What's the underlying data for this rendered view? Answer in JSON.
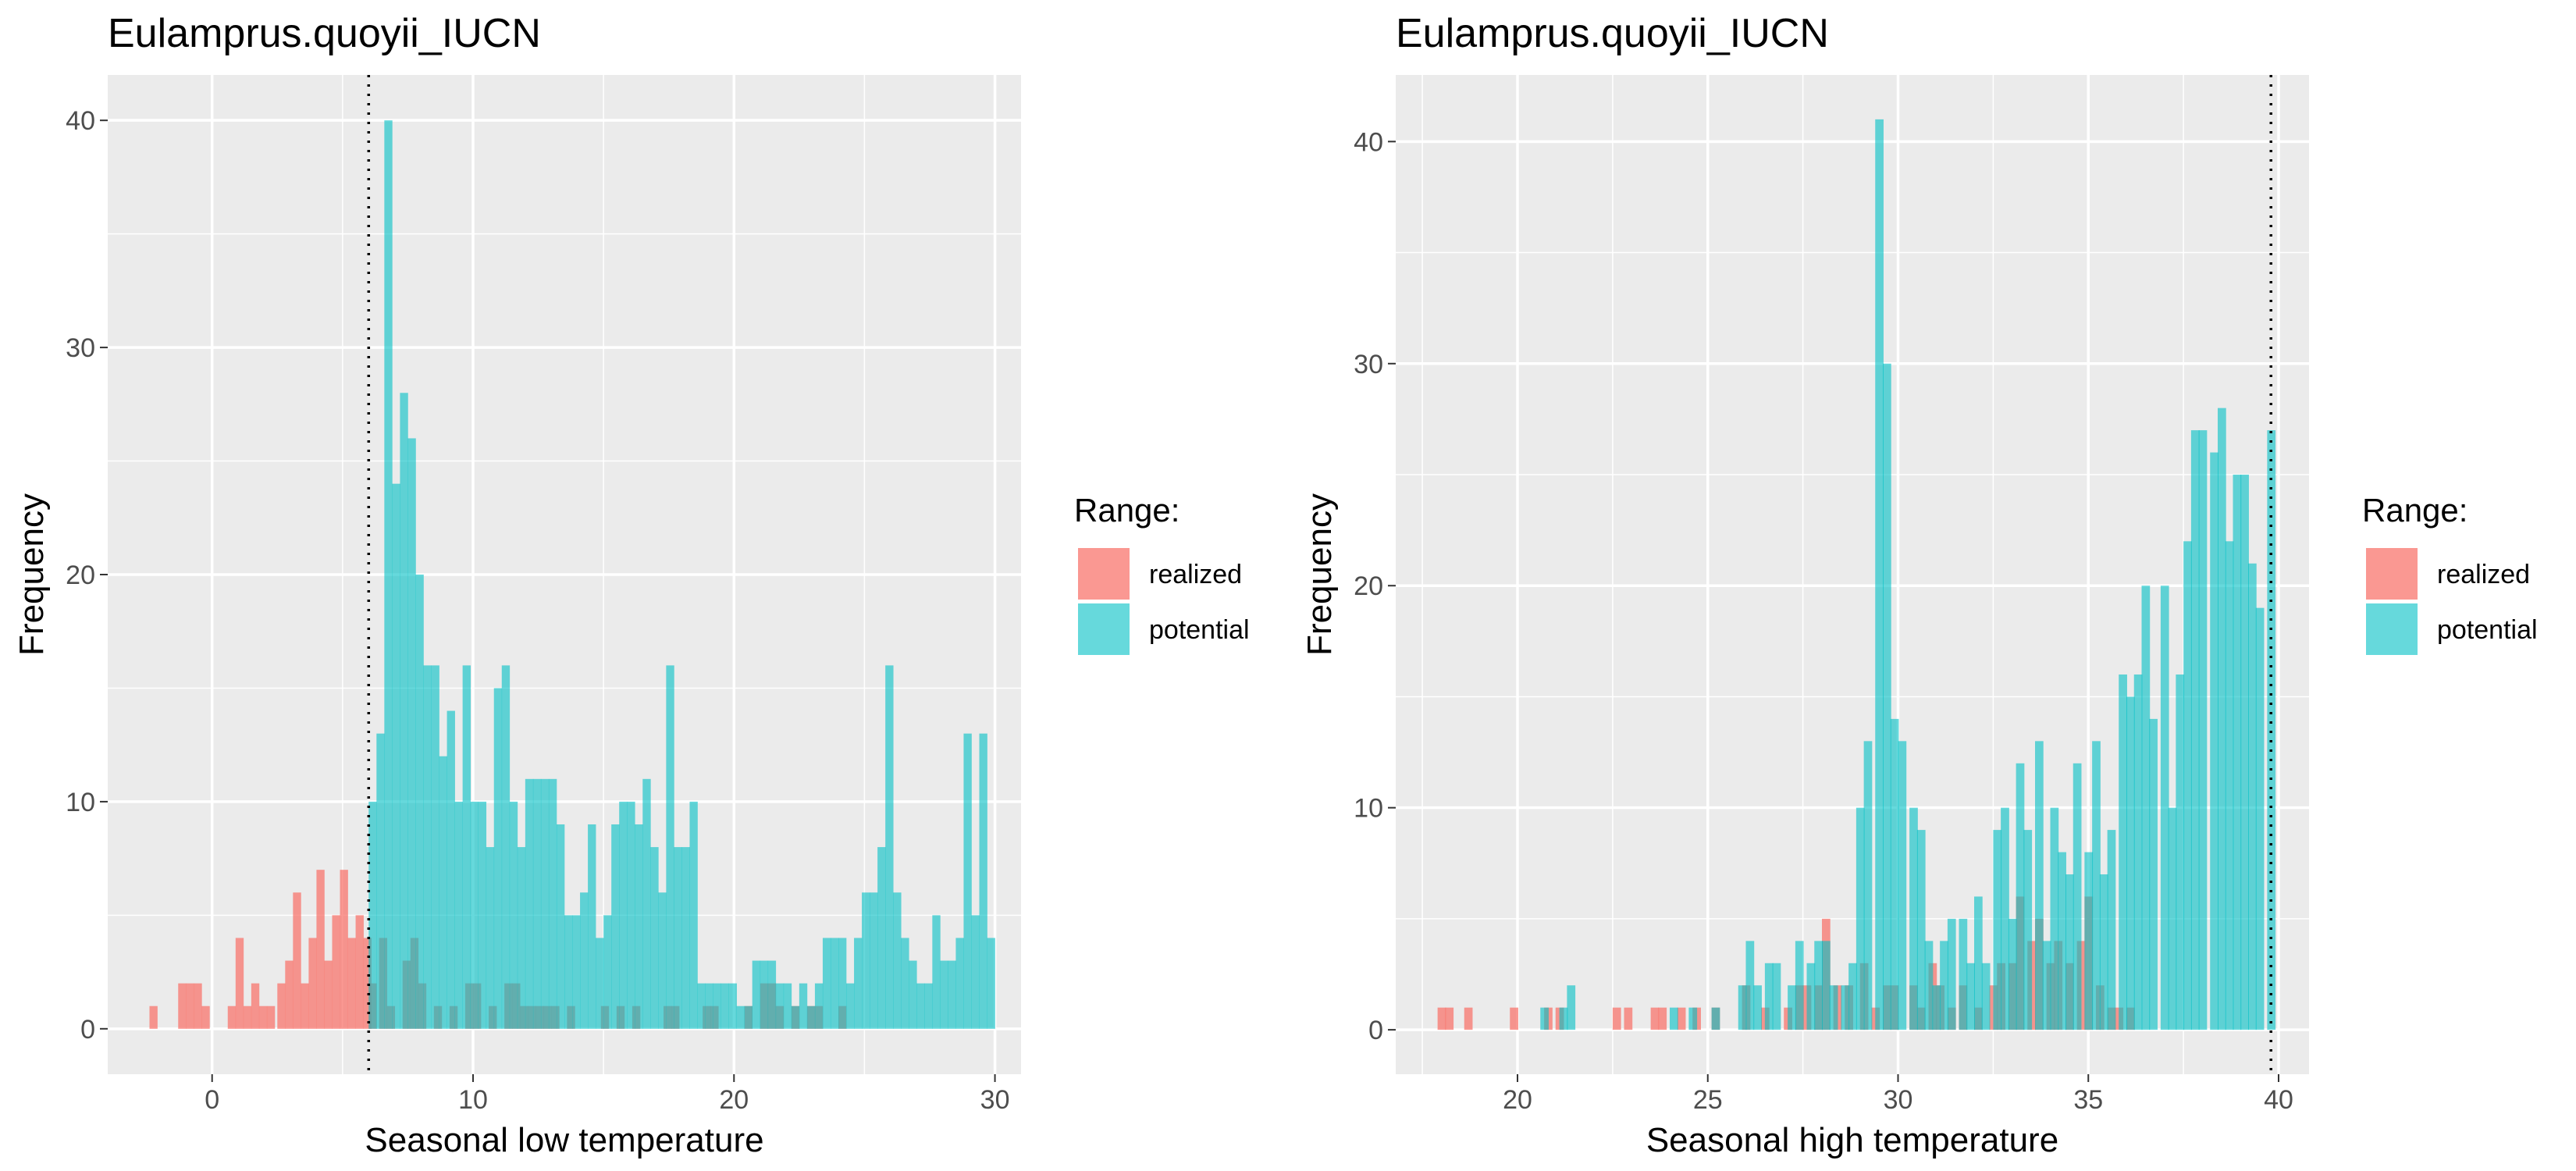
{
  "legend": {
    "title": "Range:",
    "entries": [
      {
        "label": "realized",
        "color": "#F8766D"
      },
      {
        "label": "potential",
        "color": "#00BFC4"
      }
    ]
  },
  "chart_data": [
    {
      "type": "histogram",
      "title": "Eulamprus.quoyii_IUCN",
      "xlabel": "Seasonal low temperature",
      "ylabel": "Frequency",
      "xlim": [
        -4,
        31
      ],
      "ylim": [
        -2,
        42
      ],
      "xticks": [
        0,
        10,
        20,
        30
      ],
      "yticks": [
        0,
        10,
        20,
        30,
        40
      ],
      "bin_width": 0.31,
      "grid": true,
      "legend_position": "right",
      "reference_line": {
        "x": 6.0,
        "style": "dotted"
      },
      "series": [
        {
          "name": "realized",
          "color": "#F8766D",
          "bins": [
            [
              -2.4,
              1
            ],
            [
              -1.3,
              2
            ],
            [
              -1.0,
              2
            ],
            [
              -0.7,
              2
            ],
            [
              -0.4,
              1
            ],
            [
              0.6,
              1
            ],
            [
              0.9,
              4
            ],
            [
              1.2,
              1
            ],
            [
              1.5,
              2
            ],
            [
              1.8,
              1
            ],
            [
              2.1,
              1
            ],
            [
              2.5,
              2
            ],
            [
              2.8,
              3
            ],
            [
              3.1,
              6
            ],
            [
              3.4,
              2
            ],
            [
              3.7,
              4
            ],
            [
              4.0,
              7
            ],
            [
              4.3,
              3
            ],
            [
              4.6,
              5
            ],
            [
              4.9,
              7
            ],
            [
              5.2,
              4
            ],
            [
              5.5,
              5
            ],
            [
              5.8,
              4
            ],
            [
              6.0,
              2
            ],
            [
              6.4,
              4
            ],
            [
              6.7,
              1
            ],
            [
              7.3,
              3
            ],
            [
              7.6,
              4
            ],
            [
              7.9,
              2
            ],
            [
              8.5,
              1
            ],
            [
              9.1,
              1
            ],
            [
              9.7,
              2
            ],
            [
              10.0,
              2
            ],
            [
              10.6,
              1
            ],
            [
              11.2,
              2
            ],
            [
              11.5,
              2
            ],
            [
              11.8,
              1
            ],
            [
              12.1,
              1
            ],
            [
              12.4,
              1
            ],
            [
              12.7,
              1
            ],
            [
              13.0,
              1
            ],
            [
              13.6,
              1
            ],
            [
              14.9,
              1
            ],
            [
              15.5,
              1
            ],
            [
              16.1,
              1
            ],
            [
              17.3,
              1
            ],
            [
              17.6,
              1
            ],
            [
              18.8,
              1
            ],
            [
              19.1,
              1
            ],
            [
              20.4,
              1
            ],
            [
              21.0,
              2
            ],
            [
              21.3,
              2
            ],
            [
              21.6,
              1
            ],
            [
              22.2,
              1
            ],
            [
              22.8,
              1
            ],
            [
              23.1,
              1
            ],
            [
              24.0,
              1
            ]
          ]
        },
        {
          "name": "potential",
          "color": "#00BFC4",
          "bins": [
            [
              6.0,
              10
            ],
            [
              6.3,
              13
            ],
            [
              6.6,
              40
            ],
            [
              6.9,
              24
            ],
            [
              7.2,
              28
            ],
            [
              7.5,
              26
            ],
            [
              7.8,
              20
            ],
            [
              8.1,
              16
            ],
            [
              8.4,
              16
            ],
            [
              8.7,
              12
            ],
            [
              9.0,
              14
            ],
            [
              9.3,
              10
            ],
            [
              9.6,
              16
            ],
            [
              9.9,
              10
            ],
            [
              10.2,
              10
            ],
            [
              10.5,
              8
            ],
            [
              10.8,
              15
            ],
            [
              11.1,
              16
            ],
            [
              11.4,
              10
            ],
            [
              11.7,
              8
            ],
            [
              12.0,
              11
            ],
            [
              12.3,
              11
            ],
            [
              12.6,
              11
            ],
            [
              12.9,
              11
            ],
            [
              13.2,
              9
            ],
            [
              13.5,
              5
            ],
            [
              13.8,
              5
            ],
            [
              14.1,
              6
            ],
            [
              14.4,
              9
            ],
            [
              14.7,
              4
            ],
            [
              15.0,
              5
            ],
            [
              15.3,
              9
            ],
            [
              15.6,
              10
            ],
            [
              15.9,
              10
            ],
            [
              16.2,
              9
            ],
            [
              16.5,
              11
            ],
            [
              16.8,
              8
            ],
            [
              17.1,
              6
            ],
            [
              17.4,
              16
            ],
            [
              17.7,
              8
            ],
            [
              18.0,
              8
            ],
            [
              18.3,
              10
            ],
            [
              18.6,
              2
            ],
            [
              18.9,
              2
            ],
            [
              19.2,
              2
            ],
            [
              19.5,
              2
            ],
            [
              19.8,
              2
            ],
            [
              20.1,
              1
            ],
            [
              20.4,
              1
            ],
            [
              20.7,
              3
            ],
            [
              21.0,
              3
            ],
            [
              21.3,
              3
            ],
            [
              21.6,
              2
            ],
            [
              21.9,
              2
            ],
            [
              22.2,
              1
            ],
            [
              22.5,
              2
            ],
            [
              22.8,
              1
            ],
            [
              23.1,
              2
            ],
            [
              23.4,
              4
            ],
            [
              23.7,
              4
            ],
            [
              24.0,
              4
            ],
            [
              24.3,
              2
            ],
            [
              24.6,
              4
            ],
            [
              24.9,
              6
            ],
            [
              25.2,
              6
            ],
            [
              25.5,
              8
            ],
            [
              25.8,
              16
            ],
            [
              26.1,
              6
            ],
            [
              26.4,
              4
            ],
            [
              26.7,
              3
            ],
            [
              27.0,
              2
            ],
            [
              27.3,
              2
            ],
            [
              27.6,
              5
            ],
            [
              27.9,
              3
            ],
            [
              28.2,
              3
            ],
            [
              28.5,
              4
            ],
            [
              28.8,
              13
            ],
            [
              29.1,
              5
            ],
            [
              29.4,
              13
            ],
            [
              29.7,
              4
            ]
          ]
        }
      ]
    },
    {
      "type": "histogram",
      "title": "Eulamprus.quoyii_IUCN",
      "xlabel": "Seasonal high temperature",
      "ylabel": "Frequency",
      "xlim": [
        16.8,
        40.8
      ],
      "ylim": [
        -2,
        43
      ],
      "xticks": [
        20,
        25,
        30,
        35,
        40
      ],
      "yticks": [
        0,
        10,
        20,
        30,
        40
      ],
      "bin_width": 0.22,
      "grid": true,
      "legend_position": "right",
      "reference_line": {
        "x": 39.8,
        "style": "dotted"
      },
      "series": [
        {
          "name": "realized",
          "color": "#F8766D",
          "bins": [
            [
              17.9,
              1
            ],
            [
              18.1,
              1
            ],
            [
              18.6,
              1
            ],
            [
              19.8,
              1
            ],
            [
              20.7,
              1
            ],
            [
              21.0,
              1
            ],
            [
              22.5,
              1
            ],
            [
              22.8,
              1
            ],
            [
              23.5,
              1
            ],
            [
              23.7,
              1
            ],
            [
              24.2,
              1
            ],
            [
              24.6,
              1
            ],
            [
              25.1,
              1
            ],
            [
              25.9,
              2
            ],
            [
              26.4,
              1
            ],
            [
              27.0,
              1
            ],
            [
              27.3,
              2
            ],
            [
              27.5,
              2
            ],
            [
              27.8,
              2
            ],
            [
              28.0,
              5
            ],
            [
              28.3,
              2
            ],
            [
              28.6,
              2
            ],
            [
              29.0,
              3
            ],
            [
              29.3,
              1
            ],
            [
              29.6,
              2
            ],
            [
              29.8,
              2
            ],
            [
              30.3,
              2
            ],
            [
              30.5,
              1
            ],
            [
              30.8,
              3
            ],
            [
              31.0,
              2
            ],
            [
              31.3,
              1
            ],
            [
              31.6,
              2
            ],
            [
              32.0,
              1
            ],
            [
              32.4,
              2
            ],
            [
              32.6,
              3
            ],
            [
              32.9,
              3
            ],
            [
              33.1,
              6
            ],
            [
              33.4,
              4
            ],
            [
              33.6,
              5
            ],
            [
              33.9,
              3
            ],
            [
              34.1,
              4
            ],
            [
              34.4,
              3
            ],
            [
              34.7,
              4
            ],
            [
              34.9,
              6
            ],
            [
              35.2,
              2
            ],
            [
              35.5,
              1
            ],
            [
              35.7,
              1
            ],
            [
              36.0,
              1
            ]
          ]
        },
        {
          "name": "potential",
          "color": "#00BFC4",
          "bins": [
            [
              20.6,
              1
            ],
            [
              21.1,
              1
            ],
            [
              21.3,
              2
            ],
            [
              24.0,
              1
            ],
            [
              24.5,
              1
            ],
            [
              25.1,
              1
            ],
            [
              25.8,
              2
            ],
            [
              26.0,
              4
            ],
            [
              26.2,
              2
            ],
            [
              26.5,
              3
            ],
            [
              26.7,
              3
            ],
            [
              27.1,
              2
            ],
            [
              27.3,
              4
            ],
            [
              27.6,
              3
            ],
            [
              27.8,
              4
            ],
            [
              28.0,
              4
            ],
            [
              28.2,
              2
            ],
            [
              28.5,
              2
            ],
            [
              28.7,
              3
            ],
            [
              28.9,
              10
            ],
            [
              29.1,
              13
            ],
            [
              29.4,
              41
            ],
            [
              29.6,
              30
            ],
            [
              29.8,
              14
            ],
            [
              30.0,
              13
            ],
            [
              30.3,
              10
            ],
            [
              30.5,
              9
            ],
            [
              30.7,
              4
            ],
            [
              30.9,
              2
            ],
            [
              31.1,
              4
            ],
            [
              31.3,
              5
            ],
            [
              31.6,
              5
            ],
            [
              31.8,
              3
            ],
            [
              32.0,
              6
            ],
            [
              32.2,
              3
            ],
            [
              32.5,
              9
            ],
            [
              32.7,
              10
            ],
            [
              32.9,
              5
            ],
            [
              33.1,
              12
            ],
            [
              33.3,
              9
            ],
            [
              33.6,
              13
            ],
            [
              33.8,
              4
            ],
            [
              34.0,
              10
            ],
            [
              34.2,
              8
            ],
            [
              34.4,
              7
            ],
            [
              34.6,
              12
            ],
            [
              34.9,
              8
            ],
            [
              35.1,
              13
            ],
            [
              35.3,
              7
            ],
            [
              35.5,
              9
            ],
            [
              35.8,
              16
            ],
            [
              36.0,
              15
            ],
            [
              36.2,
              16
            ],
            [
              36.4,
              20
            ],
            [
              36.6,
              14
            ],
            [
              36.9,
              20
            ],
            [
              37.1,
              10
            ],
            [
              37.3,
              16
            ],
            [
              37.5,
              22
            ],
            [
              37.7,
              27
            ],
            [
              37.9,
              27
            ],
            [
              38.2,
              26
            ],
            [
              38.4,
              28
            ],
            [
              38.6,
              22
            ],
            [
              38.8,
              25
            ],
            [
              39.0,
              25
            ],
            [
              39.2,
              21
            ],
            [
              39.4,
              19
            ],
            [
              39.7,
              27
            ]
          ]
        }
      ]
    }
  ]
}
